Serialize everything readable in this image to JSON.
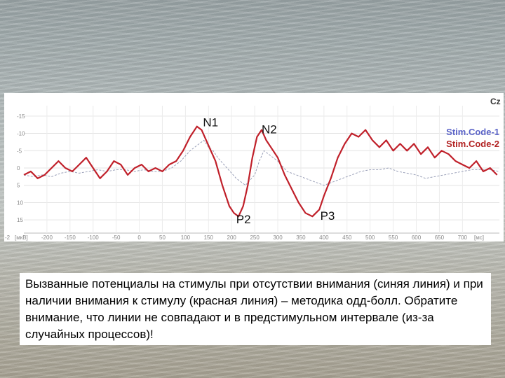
{
  "caption": "Вызванные потенциалы на стимулы при отсутствии внимания (синяя линия) и при наличии внимания к стимулу (красная линия) – методика одд-болл. Обратите внимание, что линии не совпадают и в предстимульном интервале (из-за случайных процессов)!",
  "chart_data": {
    "type": "line",
    "channel": "Cz",
    "x_unit": "[мс]",
    "y_unit": "[мкВ]",
    "xlim": [
      -250,
      780
    ],
    "ylim": [
      -18,
      18
    ],
    "y_inverted": true,
    "x_ticks": [
      -200,
      -150,
      -100,
      -50,
      0,
      50,
      100,
      150,
      200,
      250,
      300,
      350,
      400,
      450,
      500,
      550,
      600,
      650,
      700
    ],
    "x_tick_labels": [
      "-200",
      "-150",
      "-100",
      "-50",
      "0",
      "50",
      "100",
      "150",
      "200",
      "250",
      "300",
      "350",
      "400",
      "450",
      "500",
      "550",
      "600",
      "650",
      "700"
    ],
    "x_start_label": "-2",
    "y_ticks": [
      -15,
      -10,
      -5,
      0,
      5,
      10,
      15
    ],
    "y_tick_labels": [
      "-15",
      "-10",
      "-5",
      "0",
      "5",
      "10",
      "15"
    ],
    "peak_labels": [
      {
        "text": "N1",
        "x": 138,
        "y": -12
      },
      {
        "text": "N2",
        "x": 265,
        "y": -10
      },
      {
        "text": "P2",
        "x": 210,
        "y": 16
      },
      {
        "text": "P3",
        "x": 392,
        "y": 15
      }
    ],
    "series": [
      {
        "name": "Stim.Code-1",
        "color": "#9aa0b8",
        "dashed": true,
        "x": [
          -250,
          -230,
          -210,
          -190,
          -170,
          -150,
          -130,
          -110,
          -90,
          -70,
          -50,
          -30,
          -10,
          10,
          30,
          50,
          70,
          90,
          110,
          130,
          140,
          150,
          160,
          170,
          190,
          210,
          230,
          250,
          260,
          270,
          280,
          300,
          320,
          340,
          360,
          380,
          400,
          420,
          440,
          460,
          480,
          500,
          520,
          540,
          560,
          580,
          600,
          620,
          640,
          660,
          680,
          700,
          720,
          740,
          760,
          780
        ],
        "y": [
          2,
          2.5,
          2,
          2.5,
          1.5,
          1,
          1.5,
          1,
          0.5,
          1,
          0.5,
          0.5,
          1,
          0.5,
          1,
          1,
          0,
          -2,
          -5,
          -7,
          -8,
          -6,
          -5,
          -3,
          0,
          3,
          5,
          2,
          -2,
          -5,
          -4,
          -2,
          1,
          2,
          3,
          4,
          5,
          4,
          3,
          2,
          1,
          0.5,
          0.5,
          0,
          1,
          1.5,
          2,
          3,
          2.5,
          2,
          1.5,
          1,
          0.5,
          0.5,
          0.5,
          1
        ]
      },
      {
        "name": "Stim.Code-2",
        "color": "#c0202a",
        "dashed": false,
        "x": [
          -250,
          -235,
          -220,
          -205,
          -190,
          -175,
          -160,
          -145,
          -130,
          -115,
          -100,
          -85,
          -70,
          -55,
          -40,
          -25,
          -10,
          5,
          20,
          35,
          50,
          65,
          80,
          95,
          110,
          125,
          135,
          145,
          155,
          165,
          180,
          195,
          205,
          215,
          225,
          235,
          245,
          255,
          265,
          275,
          285,
          300,
          315,
          330,
          345,
          360,
          375,
          390,
          400,
          415,
          430,
          445,
          460,
          475,
          490,
          505,
          520,
          535,
          550,
          565,
          580,
          595,
          610,
          625,
          640,
          655,
          670,
          685,
          700,
          715,
          730,
          745,
          760,
          775
        ],
        "y": [
          2,
          1,
          3,
          2,
          0,
          -2,
          0,
          1,
          -1,
          -3,
          0,
          3,
          1,
          -2,
          -1,
          2,
          0,
          -1,
          1,
          0,
          1,
          -1,
          -2,
          -5,
          -9,
          -12,
          -11,
          -8,
          -5,
          -2,
          5,
          11,
          13,
          14,
          11,
          5,
          -3,
          -9,
          -11,
          -8,
          -6,
          -3,
          2,
          6,
          10,
          13,
          14,
          12,
          8,
          3,
          -3,
          -7,
          -10,
          -9,
          -11,
          -8,
          -6,
          -8,
          -5,
          -7,
          -5,
          -7,
          -4,
          -6,
          -3,
          -5,
          -4,
          -2,
          -1,
          0,
          -2,
          1,
          0,
          2
        ]
      }
    ]
  }
}
